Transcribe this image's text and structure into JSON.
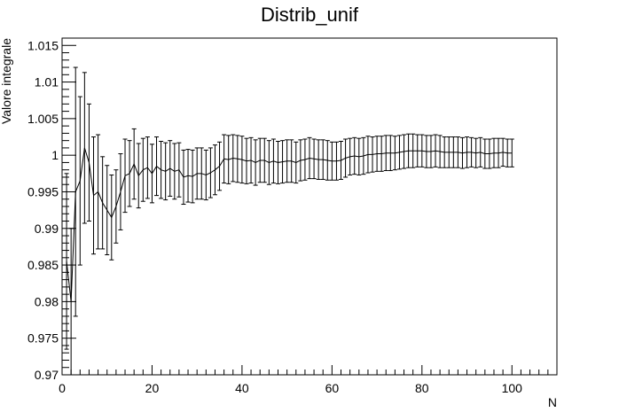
{
  "chart_data": {
    "type": "line",
    "title": "Distrib_unif",
    "xlabel": "N",
    "ylabel": "Valore integrale",
    "xlim": [
      0,
      110
    ],
    "ylim": [
      0.97,
      1.016
    ],
    "x_ticks": [
      0,
      20,
      40,
      60,
      80,
      100
    ],
    "x_tick_labels": [
      "0",
      "20",
      "40",
      "60",
      "80",
      "100"
    ],
    "y_ticks": [
      0.97,
      0.975,
      0.98,
      0.985,
      0.99,
      0.995,
      1.0,
      1.005,
      1.01,
      1.015
    ],
    "y_tick_labels": [
      "0.97",
      "0.975",
      "0.98",
      "0.985",
      "0.99",
      "0.995",
      "1",
      "1.005",
      "1.01",
      "1.015"
    ],
    "grid": false,
    "legend": "none",
    "error_bars": true,
    "series": [
      {
        "x": [
          1,
          2,
          3,
          4,
          5,
          6,
          7,
          8,
          9,
          10,
          11,
          12,
          13,
          14,
          15,
          16,
          17,
          18,
          19,
          20,
          21,
          22,
          23,
          24,
          25,
          26,
          27,
          28,
          29,
          30,
          31,
          32,
          33,
          34,
          35,
          36,
          37,
          38,
          39,
          40,
          41,
          42,
          43,
          44,
          45,
          46,
          47,
          48,
          49,
          50,
          51,
          52,
          53,
          54,
          55,
          56,
          57,
          58,
          59,
          60,
          61,
          62,
          63,
          64,
          65,
          66,
          67,
          68,
          69,
          70,
          71,
          72,
          73,
          74,
          75,
          76,
          77,
          78,
          79,
          80,
          81,
          82,
          83,
          84,
          85,
          86,
          87,
          88,
          89,
          90,
          91,
          92,
          93,
          94,
          95,
          96,
          97,
          98,
          99,
          100
        ],
        "y": [
          0.9855,
          0.98,
          0.995,
          0.9965,
          1.001,
          0.999,
          0.9945,
          0.995,
          0.9935,
          0.9925,
          0.9915,
          0.993,
          0.995,
          0.9972,
          0.9975,
          0.9988,
          0.9972,
          0.998,
          0.9983,
          0.9975,
          0.9985,
          0.998,
          0.9978,
          0.9982,
          0.9978,
          0.998,
          0.997,
          0.9972,
          0.9971,
          0.9975,
          0.9975,
          0.9973,
          0.9976,
          0.998,
          0.9985,
          0.9995,
          0.9994,
          0.9996,
          0.9995,
          0.9994,
          0.9992,
          0.9993,
          0.999,
          0.9993,
          0.9993,
          0.999,
          0.9992,
          0.999,
          0.9991,
          0.9992,
          0.9992,
          0.999,
          0.9993,
          0.9994,
          0.9996,
          0.9995,
          0.9994,
          0.9994,
          0.9993,
          0.9992,
          0.9992,
          0.9993,
          0.9996,
          0.9998,
          0.9999,
          0.9998,
          0.9999,
          1.0001,
          1.0001,
          1.0002,
          1.0002,
          1.0003,
          1.0003,
          1.0003,
          1.0004,
          1.0005,
          1.0006,
          1.0006,
          1.0006,
          1.0006,
          1.0005,
          1.0005,
          1.0006,
          1.0005,
          1.0004,
          1.0004,
          1.0004,
          1.0004,
          1.0003,
          1.0004,
          1.0004,
          1.0003,
          1.0004,
          1.0002,
          1.0002,
          1.0003,
          1.0003,
          1.0004,
          1.0003,
          1.0003
        ],
        "err": [
          0.012,
          0.01,
          0.017,
          0.0115,
          0.0103,
          0.008,
          0.008,
          0.0078,
          0.0063,
          0.0061,
          0.0058,
          0.005,
          0.0052,
          0.005,
          0.0045,
          0.0048,
          0.0044,
          0.0043,
          0.0042,
          0.004,
          0.004,
          0.0039,
          0.0039,
          0.0038,
          0.0038,
          0.0037,
          0.0037,
          0.0036,
          0.0036,
          0.0035,
          0.0035,
          0.0034,
          0.0034,
          0.0034,
          0.0033,
          0.0033,
          0.0033,
          0.0032,
          0.0032,
          0.0032,
          0.0031,
          0.0031,
          0.0031,
          0.003,
          0.003,
          0.003,
          0.003,
          0.0029,
          0.0029,
          0.0029,
          0.0029,
          0.0028,
          0.0028,
          0.0028,
          0.0028,
          0.0027,
          0.0027,
          0.0027,
          0.0027,
          0.0026,
          0.0026,
          0.0026,
          0.0026,
          0.0025,
          0.0025,
          0.0025,
          0.0025,
          0.0025,
          0.0024,
          0.0024,
          0.0024,
          0.0024,
          0.0024,
          0.0023,
          0.0023,
          0.0023,
          0.0023,
          0.0023,
          0.0022,
          0.0022,
          0.0022,
          0.0022,
          0.0022,
          0.0022,
          0.0021,
          0.0021,
          0.0021,
          0.0021,
          0.0021,
          0.0021,
          0.002,
          0.002,
          0.002,
          0.002,
          0.002,
          0.002,
          0.002,
          0.0019,
          0.0019,
          0.0019
        ]
      }
    ],
    "colors": {
      "line": "#000000",
      "frame": "#000000",
      "background": "#ffffff"
    }
  }
}
